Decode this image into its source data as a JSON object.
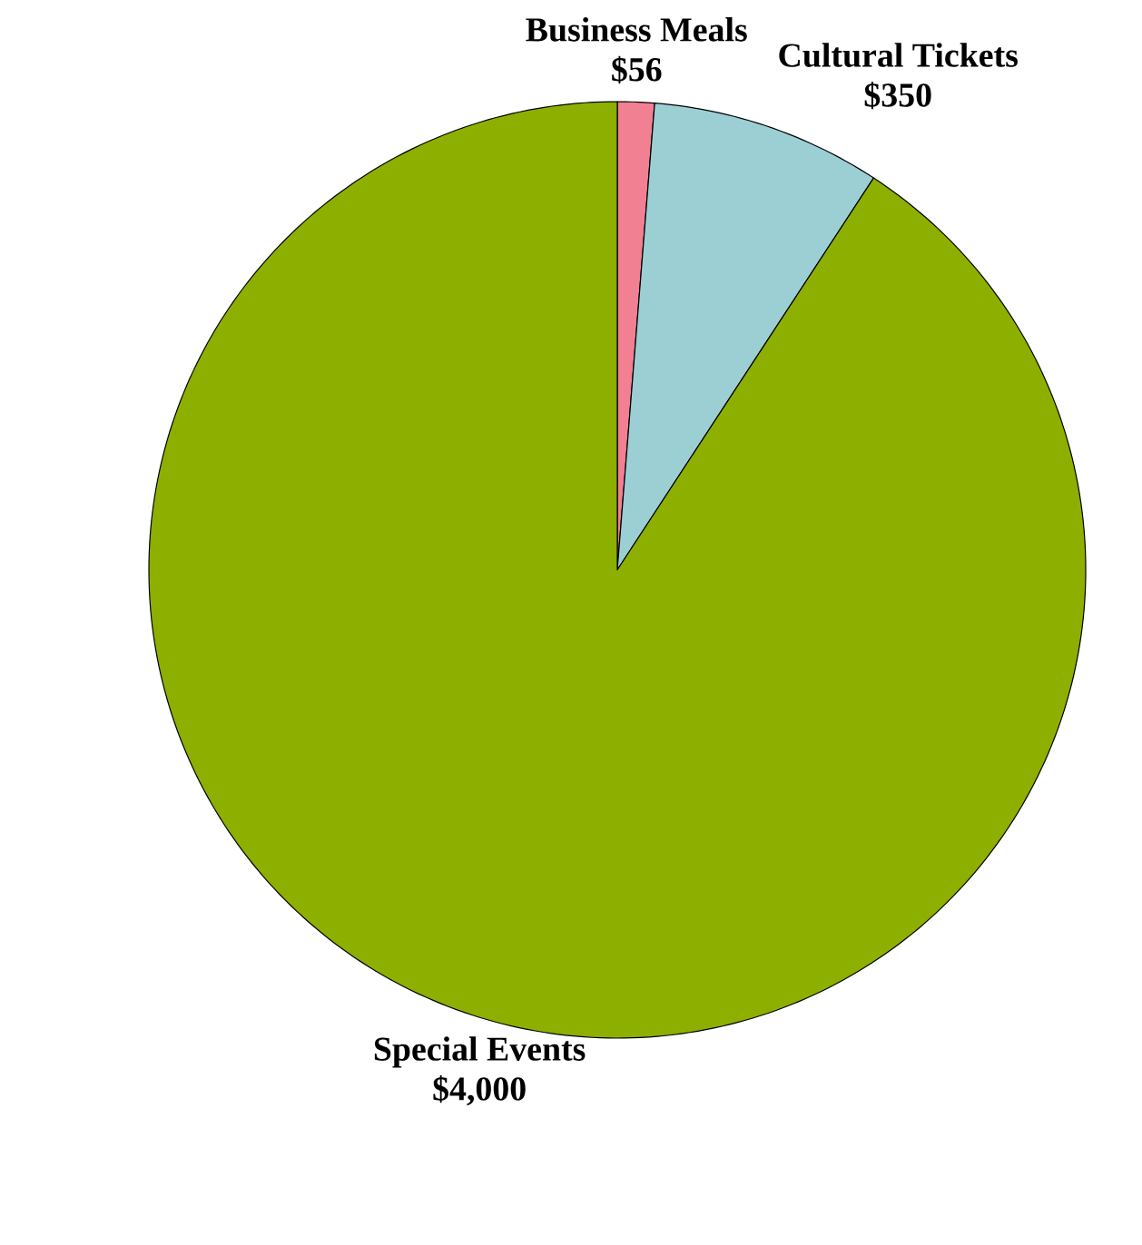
{
  "chart_data": {
    "type": "pie",
    "categories": [
      "Business Meals",
      "Cultural Tickets",
      "Special Events"
    ],
    "values": [
      56,
      350,
      4000
    ],
    "value_labels": [
      "$56",
      "$350",
      "$4,000"
    ],
    "colors": [
      "#f08092",
      "#9bcfd3",
      "#8daf00"
    ]
  }
}
